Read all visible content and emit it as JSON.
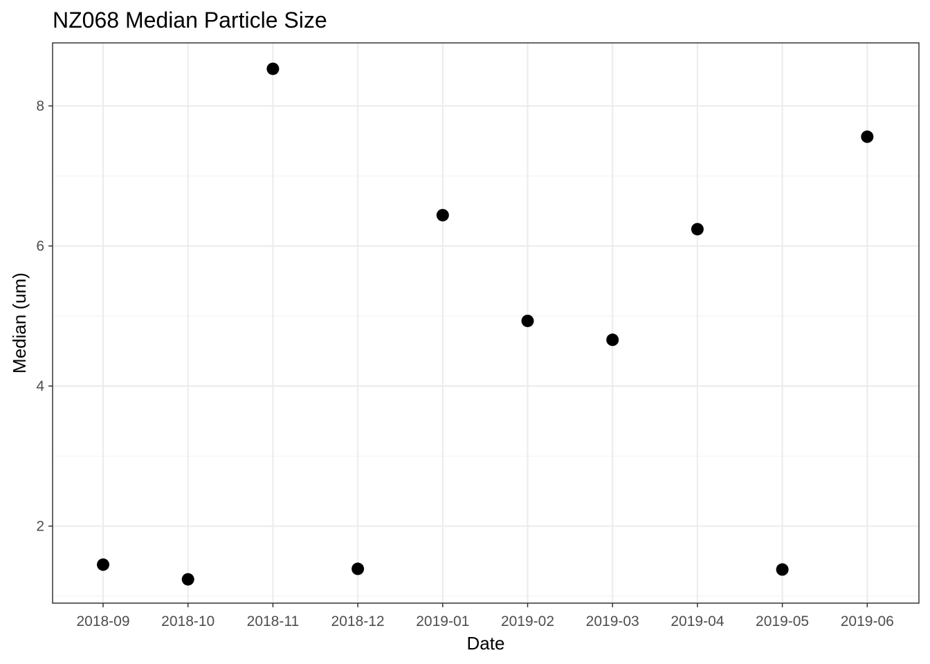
{
  "chart_data": {
    "type": "scatter",
    "title": "NZ068 Median Particle Size",
    "xlabel": "Date",
    "ylabel": "Median (um)",
    "x_ticks": [
      "2018-09",
      "2018-10",
      "2018-11",
      "2018-12",
      "2019-01",
      "2019-02",
      "2019-03",
      "2019-04",
      "2019-05",
      "2019-06"
    ],
    "y_ticks": [
      2,
      4,
      6,
      8
    ],
    "ylim": [
      0.9,
      8.9
    ],
    "grid": true,
    "legend": "none",
    "point_color": "#000000",
    "points": [
      {
        "x": "2018-09",
        "y": 1.45
      },
      {
        "x": "2018-10",
        "y": 1.24
      },
      {
        "x": "2018-11",
        "y": 8.53
      },
      {
        "x": "2018-12",
        "y": 1.39
      },
      {
        "x": "2019-01",
        "y": 6.44
      },
      {
        "x": "2019-02",
        "y": 4.93
      },
      {
        "x": "2019-03",
        "y": 4.66
      },
      {
        "x": "2019-04",
        "y": 6.24
      },
      {
        "x": "2019-05",
        "y": 1.38
      },
      {
        "x": "2019-06",
        "y": 7.56
      }
    ]
  }
}
